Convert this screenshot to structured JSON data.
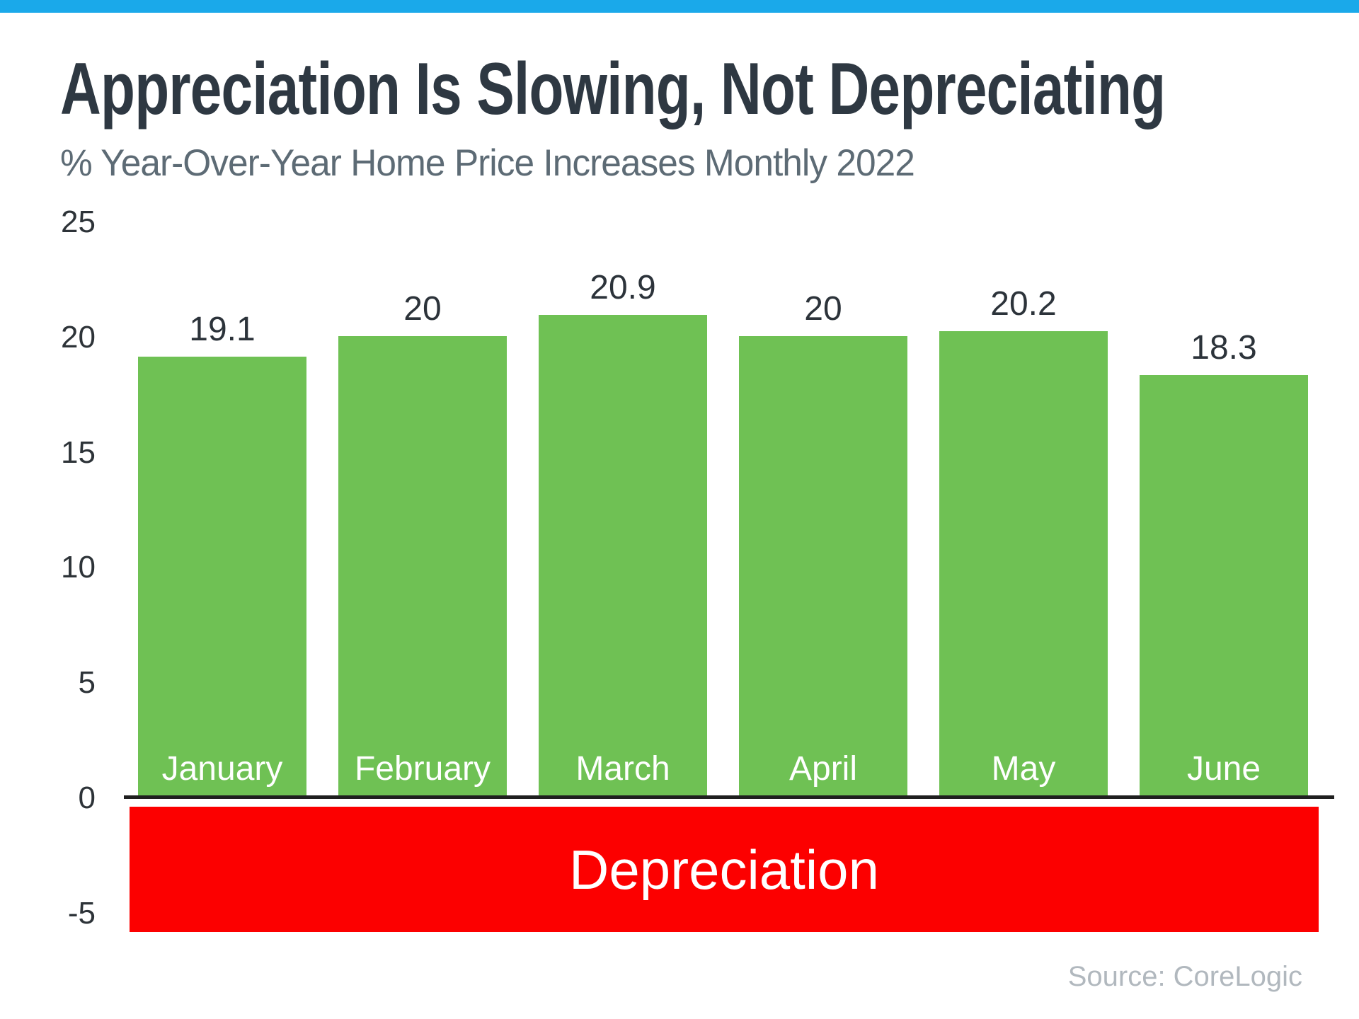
{
  "page": {
    "title": "Appreciation Is Slowing, Not Depreciating",
    "subtitle": "% Year-Over-Year Home Price Increases Monthly 2022",
    "source": "Source: CoreLogic"
  },
  "colors": {
    "accent_blue": "#1aa9ea",
    "bar_green": "#6fc154",
    "band_red": "#fc0000",
    "title_text": "#2e3842",
    "subtitle_text": "#5d6b75",
    "tick_text": "#2d3338",
    "value_label_text": "#2c333a",
    "month_label_text": "#ffffff",
    "source_text": "#b1b8be"
  },
  "chart_data": {
    "type": "bar",
    "title": "Appreciation Is Slowing, Not Depreciating",
    "subtitle": "% Year-Over-Year Home Price Increases Monthly 2022",
    "categories": [
      "January",
      "February",
      "March",
      "April",
      "May",
      "June"
    ],
    "values": [
      19.1,
      20,
      20.9,
      20,
      20.2,
      18.3
    ],
    "value_labels": [
      "19.1",
      "20",
      "20.9",
      "20",
      "20.2",
      "18.3"
    ],
    "y_ticks": [
      25,
      20,
      15,
      10,
      5,
      0,
      -5
    ],
    "ylim": [
      -5,
      25
    ],
    "xlabel": "",
    "ylabel": "",
    "grid": false,
    "legend": false,
    "annotation": "Depreciation",
    "annotation_range": [
      0,
      -5
    ]
  }
}
